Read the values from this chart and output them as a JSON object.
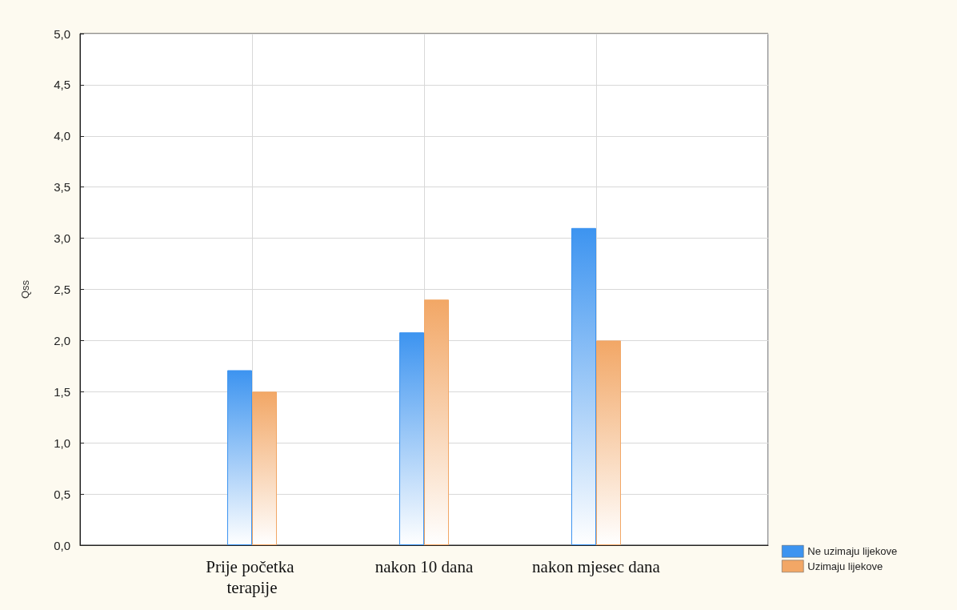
{
  "chart_data": {
    "type": "bar",
    "ylabel": "Qss",
    "categories": [
      "Prije početka terapije",
      "nakon 10 dana",
      "nakon mjesec dana"
    ],
    "series": [
      {
        "name": "Ne uzimaju lijekove",
        "color": "#3d94f0",
        "values": [
          1.71,
          2.08,
          3.1
        ]
      },
      {
        "name": "Uzimaju lijekove",
        "color": "#f2a766",
        "values": [
          1.5,
          2.4,
          2.0
        ]
      }
    ],
    "ylim": [
      0,
      5
    ],
    "yticks": [
      {
        "value": 0,
        "label": "0,0"
      },
      {
        "value": 0.5,
        "label": "0,5"
      },
      {
        "value": 1,
        "label": "1,0"
      },
      {
        "value": 1.5,
        "label": "1,5"
      },
      {
        "value": 2,
        "label": "2,0"
      },
      {
        "value": 2.5,
        "label": "2,5"
      },
      {
        "value": 3,
        "label": "3,0"
      },
      {
        "value": 3.5,
        "label": "3,5"
      },
      {
        "value": 4,
        "label": "4,0"
      },
      {
        "value": 4.5,
        "label": "4,5"
      },
      {
        "value": 5,
        "label": "5,0"
      }
    ],
    "grid": true,
    "legend": "bottom right"
  }
}
